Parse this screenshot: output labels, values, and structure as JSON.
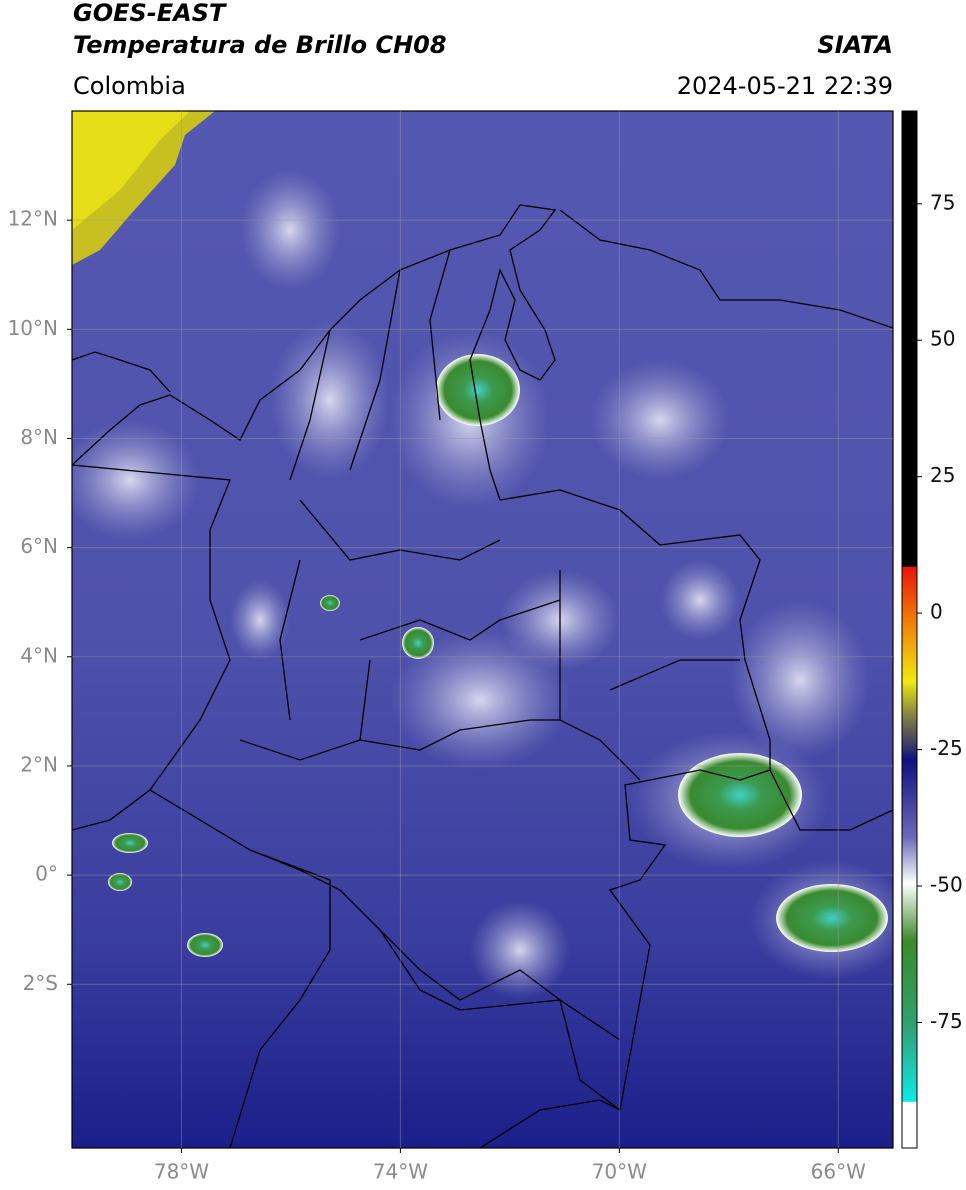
{
  "header": {
    "satellite": "GOES-EAST",
    "product": "Temperatura de Brillo CH08",
    "source": "SIATA",
    "region": "Colombia",
    "timestamp": "2024-05-21 22:39"
  },
  "map": {
    "xlim": [
      -80,
      -65
    ],
    "ylim": [
      -5,
      14
    ],
    "xticks": [
      {
        "value": -78,
        "label": "78°W"
      },
      {
        "value": -74,
        "label": "74°W"
      },
      {
        "value": -70,
        "label": "70°W"
      },
      {
        "value": -66,
        "label": "66°W"
      }
    ],
    "yticks": [
      {
        "value": 12,
        "label": "12°N"
      },
      {
        "value": 10,
        "label": "10°N"
      },
      {
        "value": 8,
        "label": "8°N"
      },
      {
        "value": 6,
        "label": "6°N"
      },
      {
        "value": 4,
        "label": "4°N"
      },
      {
        "value": 2,
        "label": "2°N"
      },
      {
        "value": 0,
        "label": "0°"
      },
      {
        "value": -2,
        "label": "2°S"
      }
    ],
    "grid": true
  },
  "colorbar": {
    "lim": [
      -98,
      92
    ],
    "ticks": [
      75,
      50,
      25,
      0,
      -25,
      -50,
      -75
    ]
  }
}
